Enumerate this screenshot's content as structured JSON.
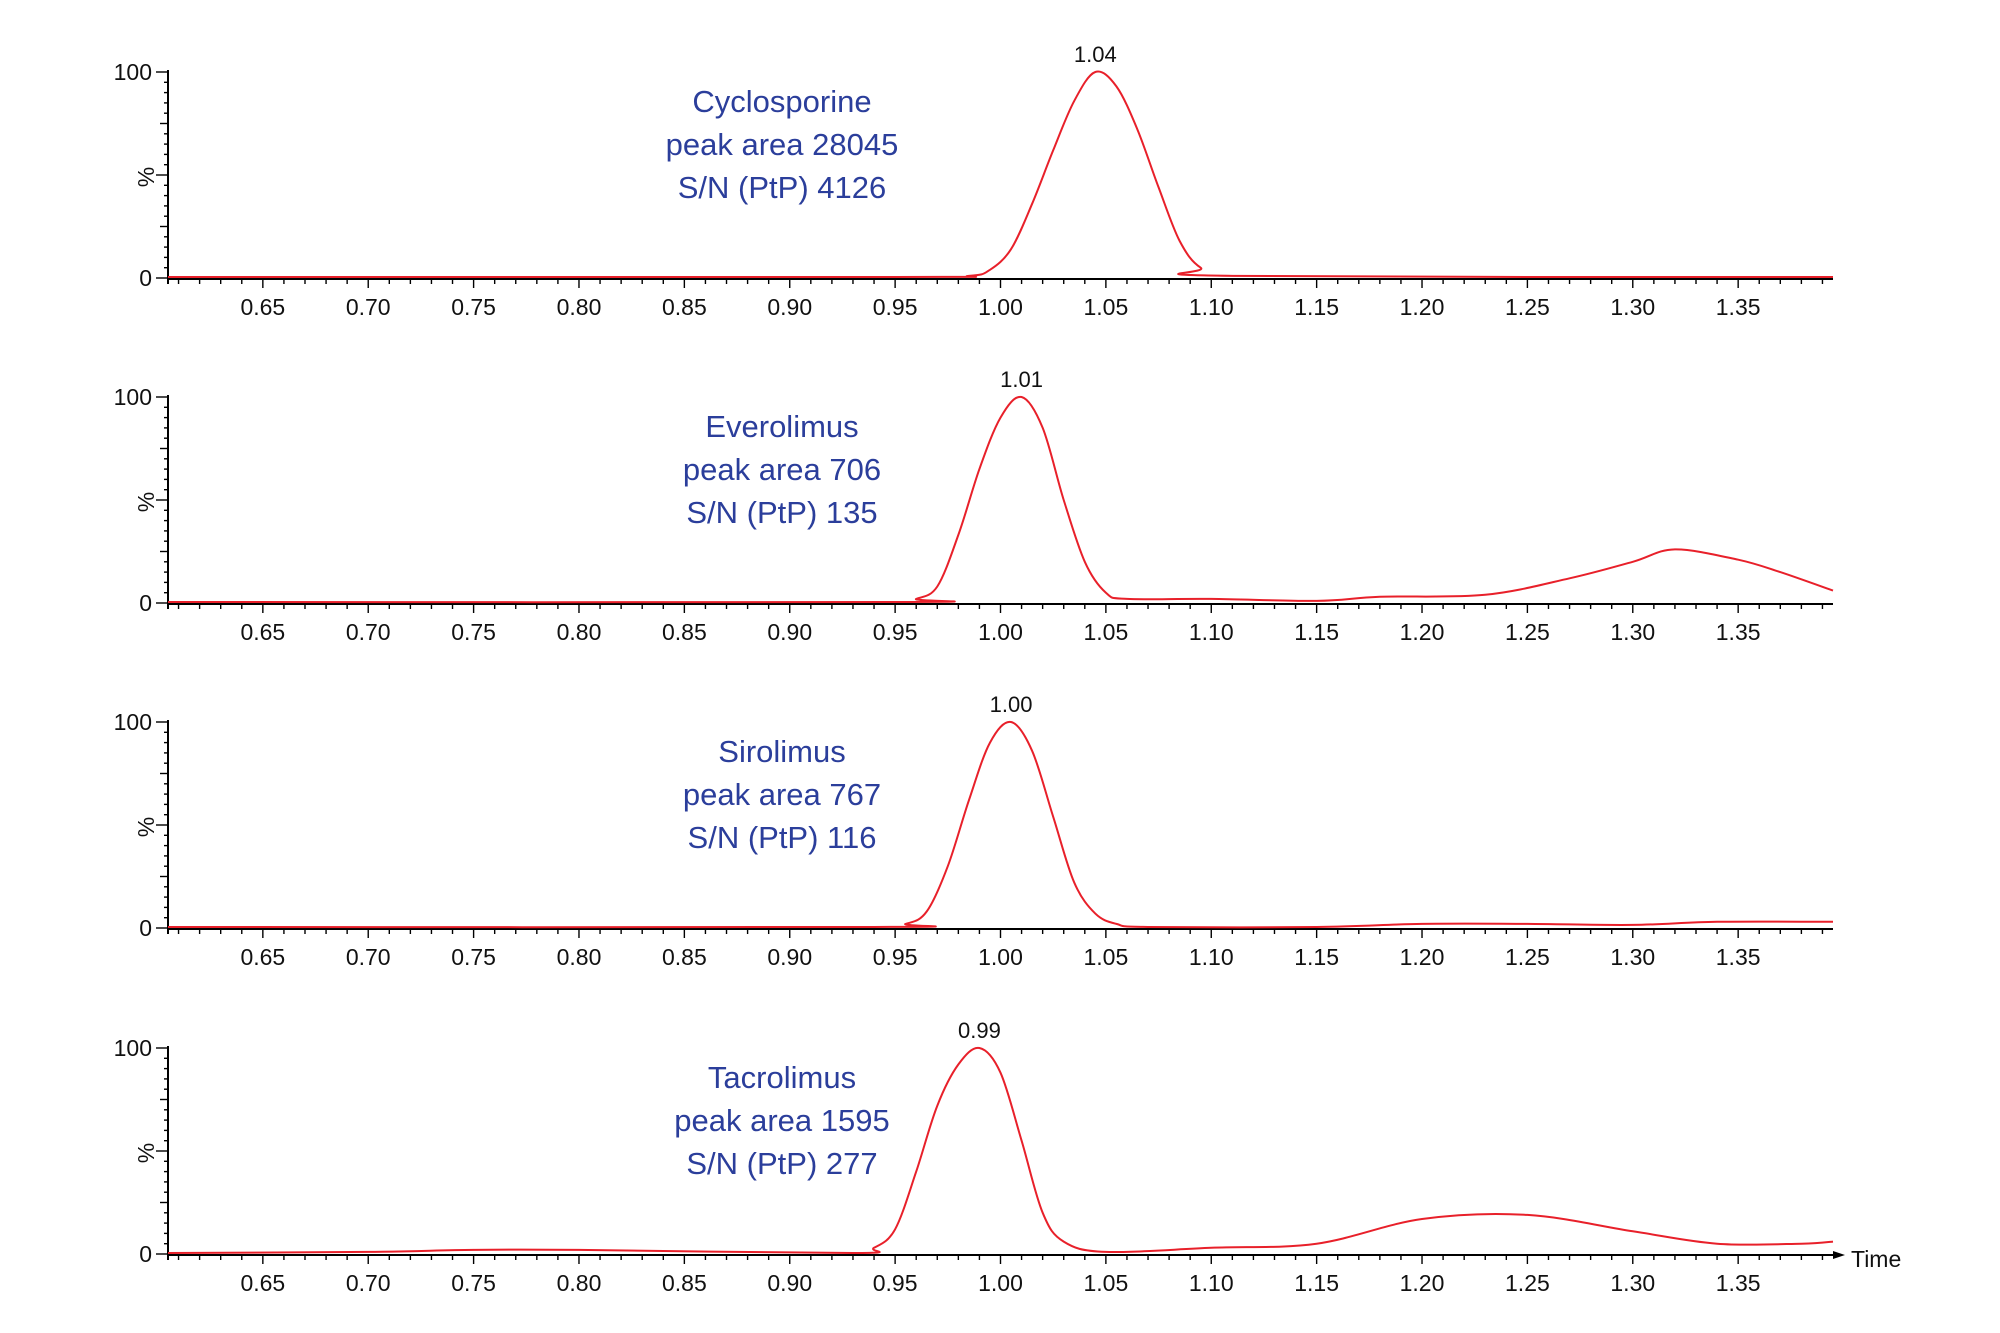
{
  "chart_data": [
    {
      "type": "line",
      "name": "Cyclosporine",
      "annotation": [
        "Cyclosporine",
        "peak area 28045",
        "S/N (PtP) 4126"
      ],
      "peak_label": "1.04",
      "peak_time": 1.045,
      "xlabel": "",
      "ylabel": "%",
      "xlim": [
        0.605,
        1.395
      ],
      "ylim": [
        0,
        100
      ],
      "y_ticks": [
        "0",
        "100"
      ],
      "x_ticks": [
        "0.65",
        "0.70",
        "0.75",
        "0.80",
        "0.85",
        "0.90",
        "0.95",
        "1.00",
        "1.05",
        "1.10",
        "1.15",
        "1.20",
        "1.25",
        "1.30",
        "1.35"
      ],
      "series": [
        {
          "color": "#e8202a",
          "x": [
            0.605,
            0.95,
            0.985,
            0.995,
            1.005,
            1.015,
            1.025,
            1.035,
            1.045,
            1.055,
            1.065,
            1.075,
            1.085,
            1.095,
            1.11,
            1.395
          ],
          "y": [
            0.5,
            0.5,
            1,
            4,
            14,
            36,
            62,
            86,
            100,
            93,
            72,
            44,
            18,
            5,
            1,
            0.5
          ]
        }
      ]
    },
    {
      "type": "line",
      "name": "Everolimus",
      "annotation": [
        "Everolimus",
        "peak area 706",
        "S/N (PtP) 135"
      ],
      "peak_label": "1.01",
      "peak_time": 1.01,
      "xlabel": "",
      "ylabel": "%",
      "xlim": [
        0.605,
        1.395
      ],
      "ylim": [
        0,
        100
      ],
      "y_ticks": [
        "0",
        "100"
      ],
      "x_ticks": [
        "0.65",
        "0.70",
        "0.75",
        "0.80",
        "0.85",
        "0.90",
        "0.95",
        "1.00",
        "1.05",
        "1.10",
        "1.15",
        "1.20",
        "1.25",
        "1.30",
        "1.35"
      ],
      "series": [
        {
          "color": "#e8202a",
          "x": [
            0.605,
            0.95,
            0.96,
            0.97,
            0.98,
            0.99,
            1.0,
            1.01,
            1.02,
            1.03,
            1.04,
            1.05,
            1.06,
            1.1,
            1.15,
            1.18,
            1.23,
            1.27,
            1.3,
            1.32,
            1.35,
            1.37,
            1.395
          ],
          "y": [
            0.5,
            0.5,
            2,
            8,
            33,
            65,
            90,
            100,
            85,
            50,
            20,
            5,
            2,
            2,
            1,
            3,
            4,
            12,
            20,
            26,
            21,
            15,
            6
          ]
        }
      ]
    },
    {
      "type": "line",
      "name": "Sirolimus",
      "annotation": [
        "Sirolimus",
        "peak area 767",
        "S/N (PtP) 116"
      ],
      "peak_label": "1.00",
      "peak_time": 1.005,
      "xlabel": "",
      "ylabel": "%",
      "xlim": [
        0.605,
        1.395
      ],
      "ylim": [
        0,
        100
      ],
      "y_ticks": [
        "0",
        "100"
      ],
      "x_ticks": [
        "0.65",
        "0.70",
        "0.75",
        "0.80",
        "0.85",
        "0.90",
        "0.95",
        "1.00",
        "1.05",
        "1.10",
        "1.15",
        "1.20",
        "1.25",
        "1.30",
        "1.35"
      ],
      "series": [
        {
          "color": "#e8202a",
          "x": [
            0.605,
            0.94,
            0.955,
            0.965,
            0.975,
            0.985,
            0.995,
            1.005,
            1.015,
            1.025,
            1.035,
            1.045,
            1.055,
            1.07,
            1.15,
            1.2,
            1.25,
            1.3,
            1.34,
            1.395
          ],
          "y": [
            0.5,
            0.5,
            2,
            8,
            30,
            62,
            90,
            100,
            86,
            54,
            22,
            7,
            2,
            0.5,
            0.5,
            2,
            2,
            1.5,
            3,
            3
          ]
        }
      ]
    },
    {
      "type": "line",
      "name": "Tacrolimus",
      "annotation": [
        "Tacrolimus",
        "peak area 1595",
        "S/N (PtP) 277"
      ],
      "peak_label": "0.99",
      "peak_time": 0.99,
      "xlabel": "Time",
      "ylabel": "%",
      "xlim": [
        0.605,
        1.395
      ],
      "ylim": [
        0,
        100
      ],
      "y_ticks": [
        "0",
        "100"
      ],
      "x_ticks": [
        "0.65",
        "0.70",
        "0.75",
        "0.80",
        "0.85",
        "0.90",
        "0.95",
        "1.00",
        "1.05",
        "1.10",
        "1.15",
        "1.20",
        "1.25",
        "1.30",
        "1.35"
      ],
      "series": [
        {
          "color": "#e8202a",
          "x": [
            0.605,
            0.7,
            0.75,
            0.8,
            0.93,
            0.94,
            0.95,
            0.96,
            0.97,
            0.98,
            0.99,
            1.0,
            1.01,
            1.02,
            1.03,
            1.05,
            1.1,
            1.15,
            1.2,
            1.25,
            1.3,
            1.34,
            1.38,
            1.395
          ],
          "y": [
            0.5,
            1,
            2,
            2,
            0.5,
            3,
            12,
            40,
            72,
            92,
            100,
            88,
            55,
            20,
            6,
            1,
            3,
            5,
            17,
            19,
            11,
            5,
            5,
            6
          ]
        }
      ]
    }
  ]
}
